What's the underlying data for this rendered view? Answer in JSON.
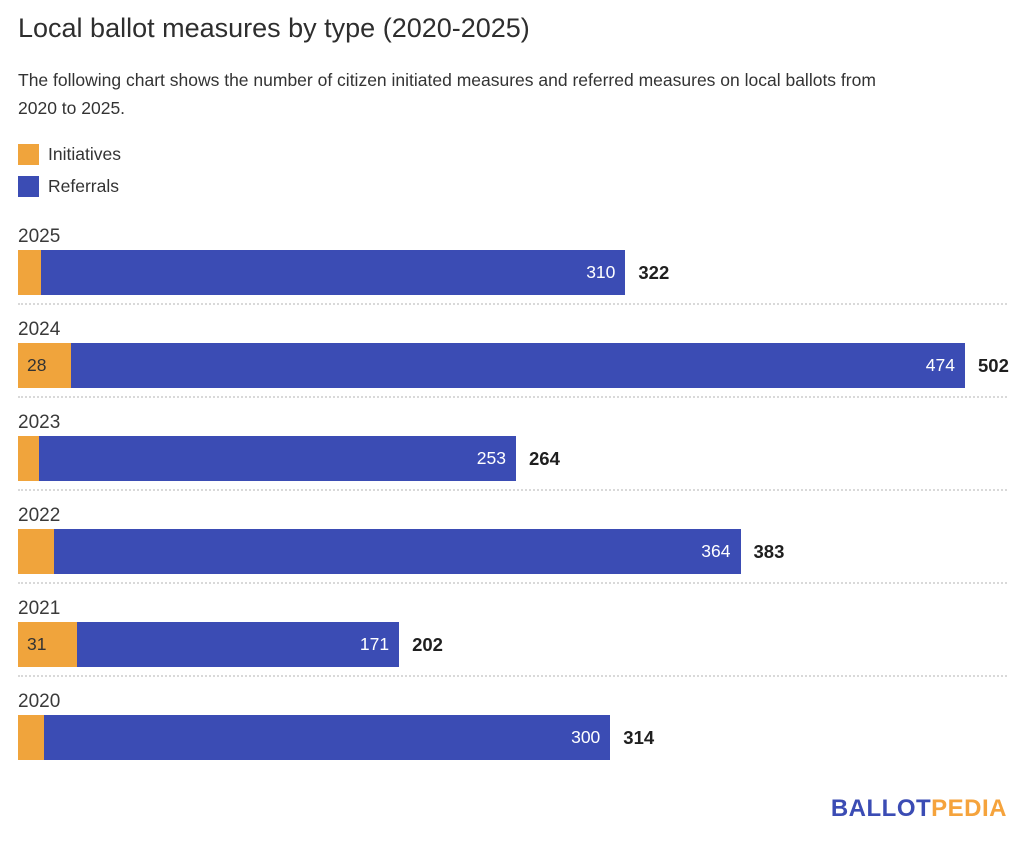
{
  "chart_data": {
    "type": "bar",
    "orientation": "horizontal",
    "stacked": true,
    "title": "Local ballot measures by type (2020-2025)",
    "subtitle_lines": [
      "The following chart shows the number of citizen initiated measures and referred measures on local ballots from",
      "2020 to 2025."
    ],
    "categories": [
      "2025",
      "2024",
      "2023",
      "2022",
      "2021",
      "2020"
    ],
    "series": [
      {
        "name": "Initiatives",
        "color": "#F0A43C",
        "values": [
          12,
          28,
          11,
          19,
          31,
          14
        ]
      },
      {
        "name": "Referrals",
        "color": "#3B4CB4",
        "values": [
          310,
          474,
          253,
          364,
          171,
          300
        ]
      }
    ],
    "totals": [
      322,
      502,
      264,
      383,
      202,
      314
    ],
    "xlim": [
      0,
      502
    ],
    "grid": false,
    "legend_position": "top-left",
    "value_label_colors": {
      "initiatives": "#333333",
      "referrals": "#ffffff",
      "totals": "#1f1f1f"
    }
  },
  "footer": {
    "logo": {
      "ballot": "BALLOT",
      "pedia": "PEDIA",
      "ballot_color": "#3B4CB4",
      "pedia_color": "#F5A33C"
    }
  }
}
